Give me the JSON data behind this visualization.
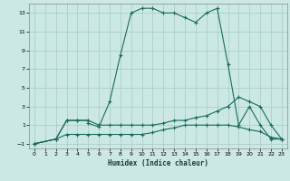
{
  "xlabel": "Humidex (Indice chaleur)",
  "bg_color": "#cce8e4",
  "grid_color": "#aacfcb",
  "line_color": "#1a6b5a",
  "xlim": [
    -0.5,
    23.5
  ],
  "ylim": [
    -1.5,
    14.0
  ],
  "xticks": [
    0,
    1,
    2,
    3,
    4,
    5,
    6,
    7,
    8,
    9,
    10,
    11,
    12,
    13,
    14,
    15,
    16,
    17,
    18,
    19,
    20,
    21,
    22,
    23
  ],
  "yticks": [
    -1,
    1,
    3,
    5,
    7,
    9,
    11,
    13
  ],
  "line1_x": [
    0,
    2,
    3,
    4,
    5,
    5,
    6,
    7,
    8,
    9,
    10,
    11,
    12,
    13,
    14,
    15,
    16,
    17,
    18,
    19,
    20,
    21,
    22,
    23
  ],
  "line1_y": [
    -1,
    -0.5,
    1.5,
    1.5,
    1.5,
    1.2,
    0.8,
    3.5,
    8.5,
    13.0,
    13.5,
    13.5,
    13.0,
    13.0,
    12.5,
    12.0,
    13.0,
    13.5,
    7.5,
    1.0,
    3.0,
    1.0,
    -0.5,
    -0.5
  ],
  "line2_x": [
    0,
    2,
    3,
    4,
    5,
    6,
    7,
    8,
    9,
    10,
    11,
    12,
    13,
    14,
    15,
    16,
    17,
    18,
    19,
    20,
    21,
    22,
    23
  ],
  "line2_y": [
    -1,
    -0.5,
    1.5,
    1.5,
    1.5,
    1.0,
    1.0,
    1.0,
    1.0,
    1.0,
    1.0,
    1.2,
    1.5,
    1.5,
    1.8,
    2.0,
    2.5,
    3.0,
    4.0,
    3.5,
    3.0,
    1.0,
    -0.5
  ],
  "line3_x": [
    0,
    2,
    3,
    4,
    5,
    6,
    7,
    8,
    9,
    10,
    11,
    12,
    13,
    14,
    15,
    16,
    17,
    18,
    19,
    20,
    21,
    22,
    23
  ],
  "line3_y": [
    -1,
    -0.5,
    0.0,
    0.0,
    0.0,
    0.0,
    0.0,
    0.0,
    0.0,
    0.0,
    0.2,
    0.5,
    0.7,
    1.0,
    1.0,
    1.0,
    1.0,
    1.0,
    0.8,
    0.5,
    0.3,
    -0.3,
    -0.5
  ]
}
